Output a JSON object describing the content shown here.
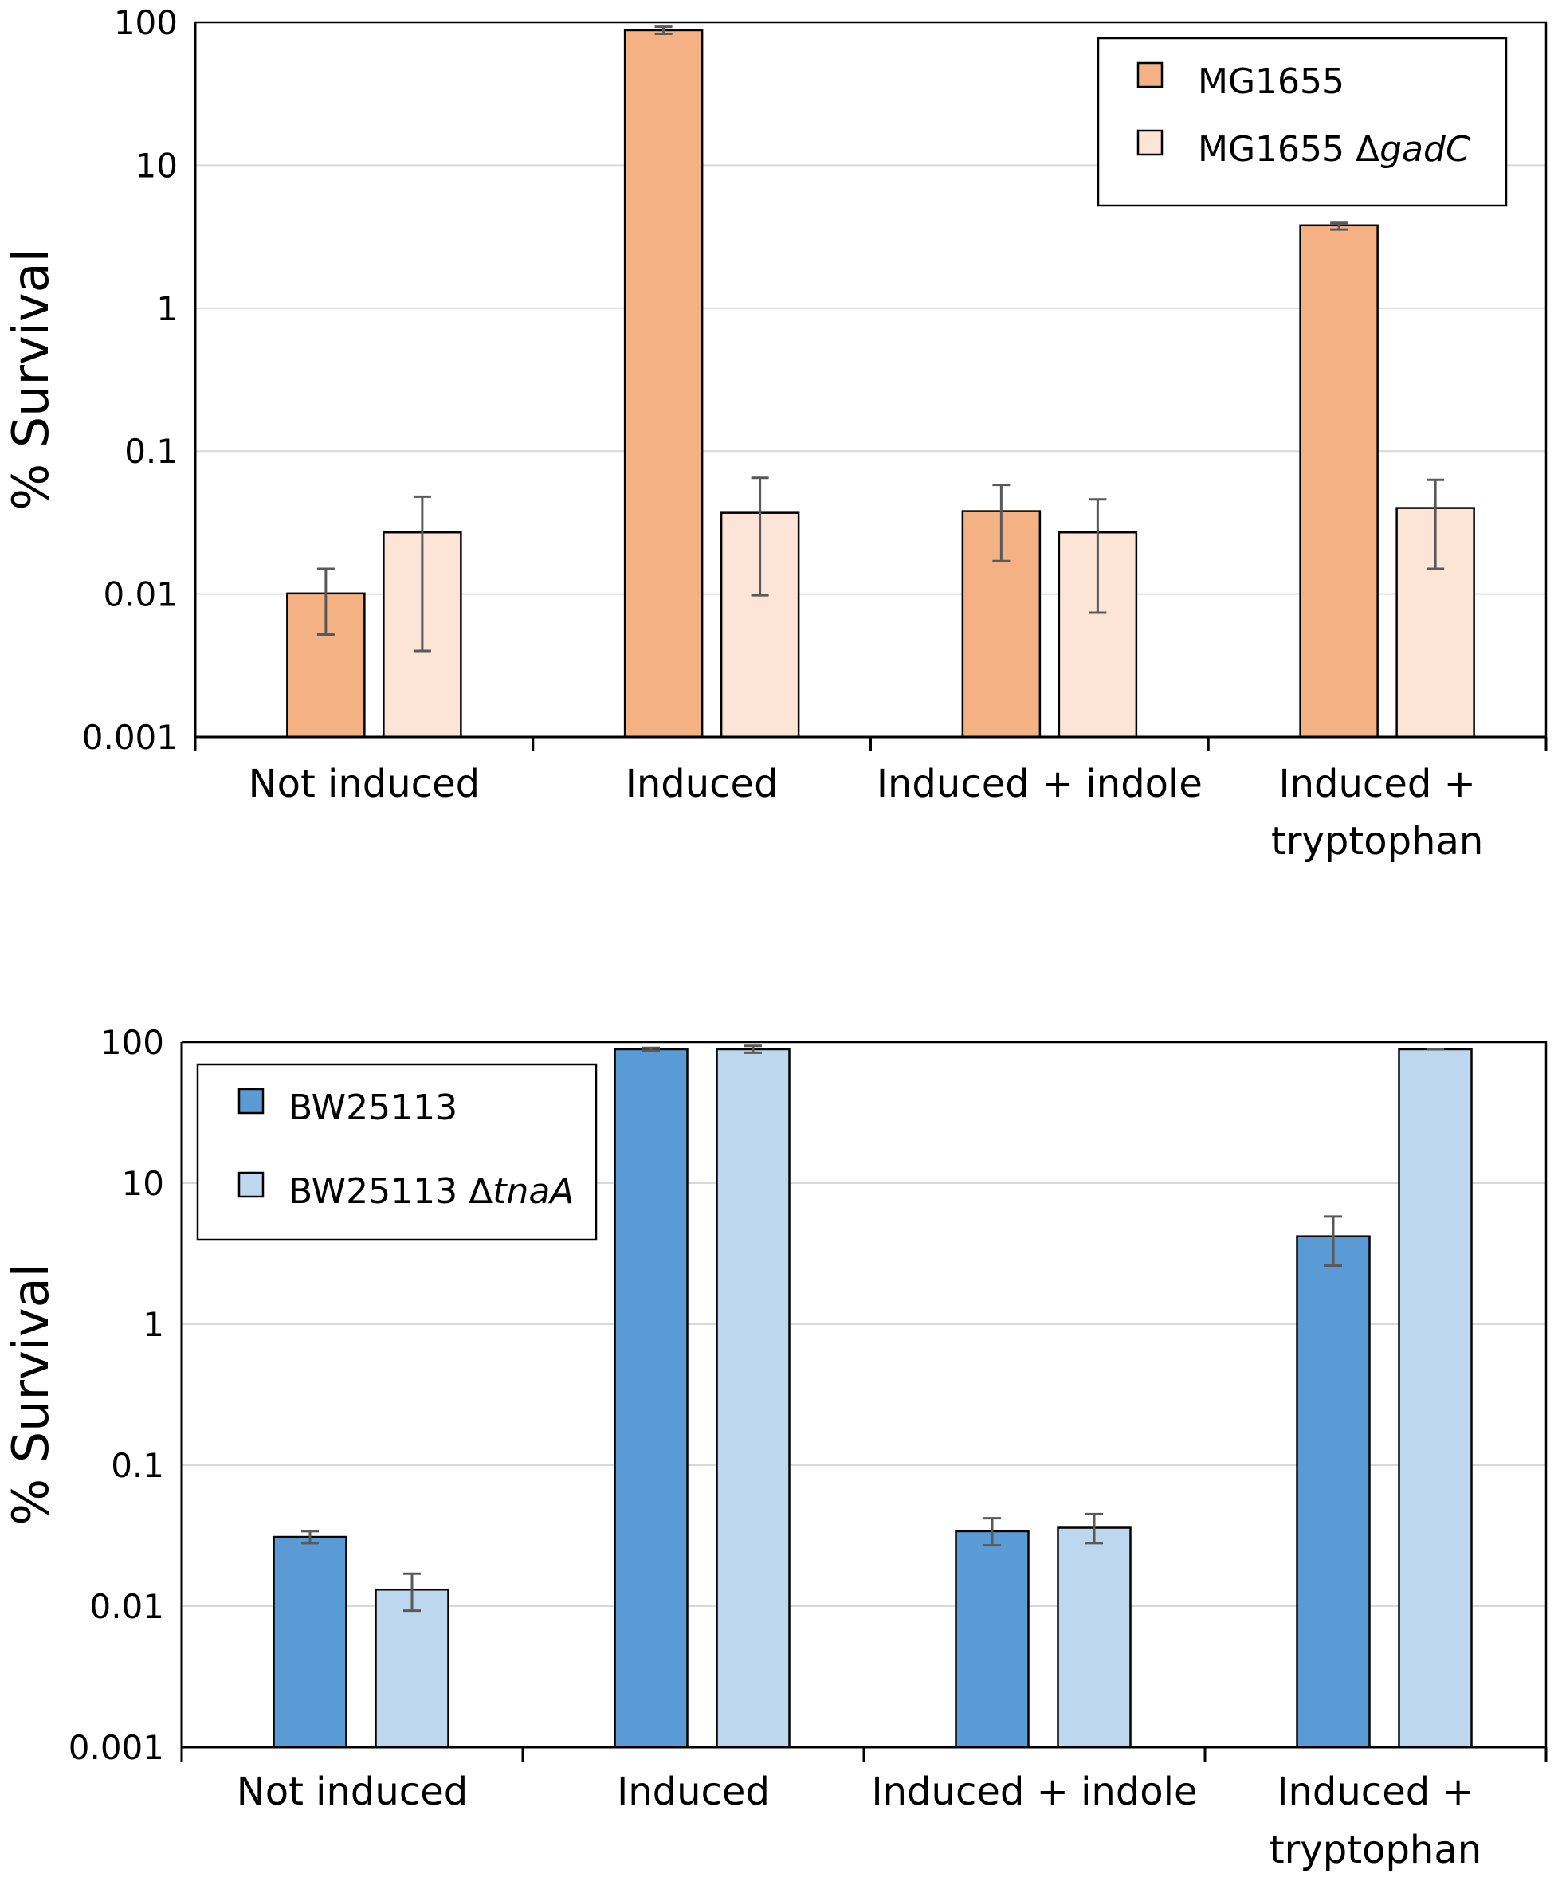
{
  "chart_data": [
    {
      "type": "bar",
      "scale": "log",
      "title": "",
      "xlabel": "",
      "ylabel": "% Survival",
      "ylim": [
        0.001,
        100
      ],
      "yticks": [
        "0.001",
        "0.01",
        "0.1",
        "1",
        "10",
        "100"
      ],
      "categories": [
        [
          "Not induced"
        ],
        [
          "Induced"
        ],
        [
          "Induced + indole"
        ],
        [
          "Induced +",
          "tryptophan"
        ]
      ],
      "legend_position": "top-right",
      "series": [
        {
          "name": "MG1655",
          "name_italic": "",
          "color": "#F4B183",
          "values": [
            0.0101,
            88,
            0.038,
            3.8
          ],
          "err_low": [
            0.0052,
            83,
            0.017,
            3.55
          ],
          "err_high": [
            0.015,
            93,
            0.058,
            3.95
          ]
        },
        {
          "name": "MG1655 Δ",
          "name_italic": "gadC",
          "color": "#FCE4D6",
          "values": [
            0.027,
            0.037,
            0.027,
            0.04
          ],
          "err_low": [
            0.004,
            0.0098,
            0.0074,
            0.015
          ],
          "err_high": [
            0.048,
            0.065,
            0.046,
            0.063
          ]
        }
      ]
    },
    {
      "type": "bar",
      "scale": "log",
      "title": "",
      "xlabel": "",
      "ylabel": "% Survival",
      "ylim": [
        0.001,
        100
      ],
      "yticks": [
        "0.001",
        "0.01",
        "0.1",
        "1",
        "10",
        "100"
      ],
      "categories": [
        [
          "Not induced"
        ],
        [
          "Induced"
        ],
        [
          "Induced + indole"
        ],
        [
          "Induced +",
          "tryptophan"
        ]
      ],
      "legend_position": "top-left",
      "series": [
        {
          "name": "BW25113",
          "name_italic": "",
          "color": "#5B9BD5",
          "values": [
            0.031,
            89,
            0.034,
            4.2
          ],
          "err_low": [
            0.028,
            87,
            0.027,
            2.6
          ],
          "err_high": [
            0.034,
            91,
            0.042,
            5.8
          ]
        },
        {
          "name": "BW25113 Δ",
          "name_italic": "tnaA",
          "color": "#BDD7EE",
          "values": [
            0.0131,
            89,
            0.036,
            89
          ],
          "err_low": [
            0.0093,
            84,
            0.028,
            89
          ],
          "err_high": [
            0.017,
            94,
            0.045,
            89
          ]
        }
      ]
    }
  ]
}
